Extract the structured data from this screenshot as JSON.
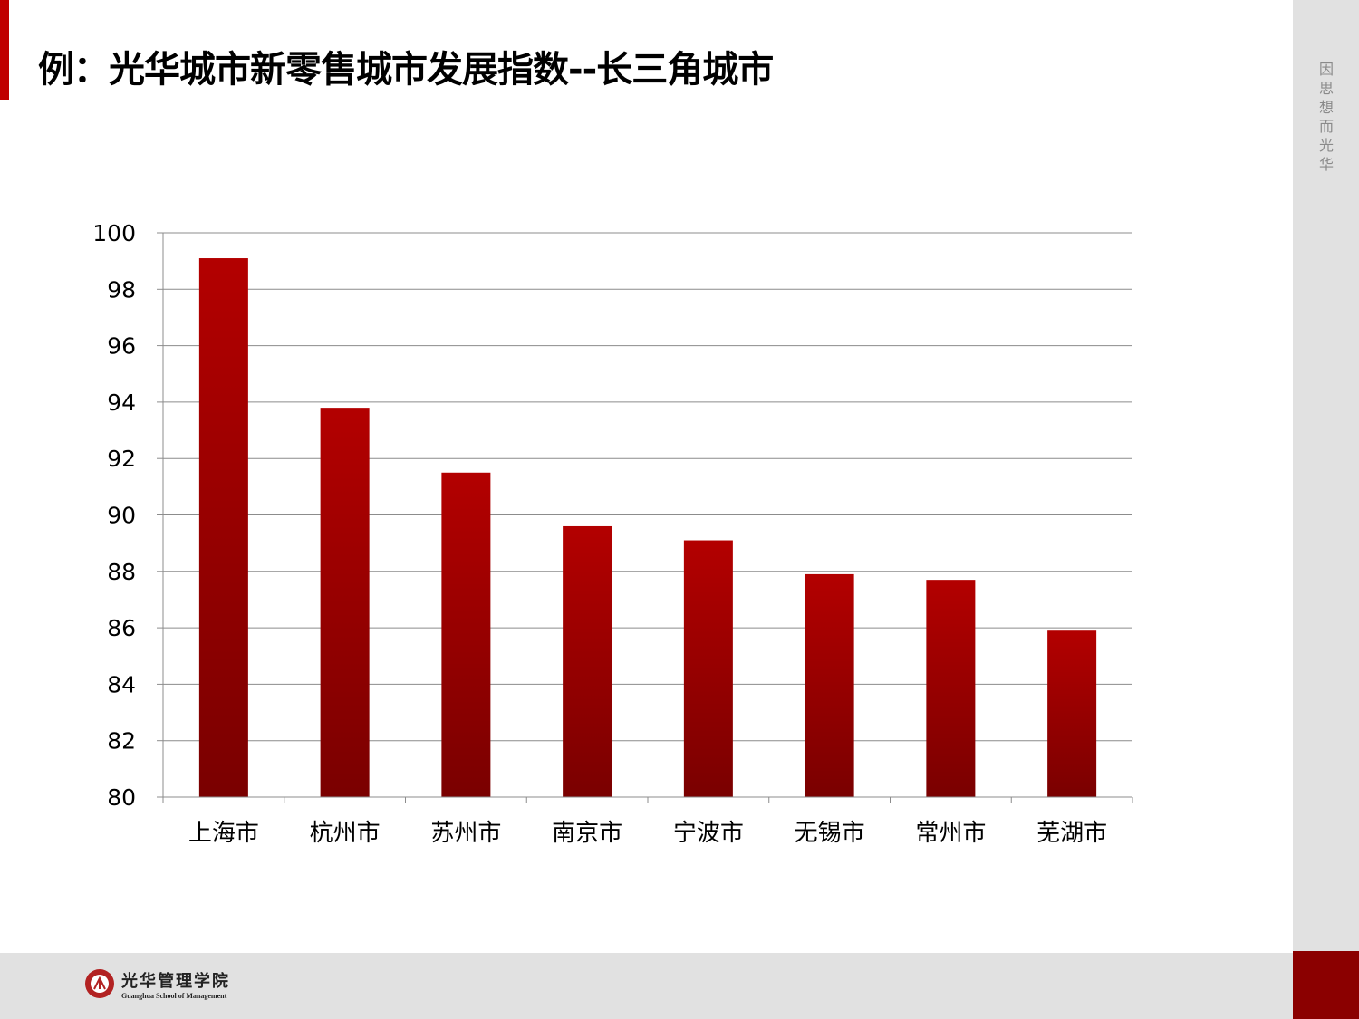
{
  "title": "例：光华城市新零售城市发展指数--长三角城市",
  "slogan": "因思想 而光华",
  "logo": {
    "cn": "光华管理学院",
    "en": "Guanghua School of Management"
  },
  "colors": {
    "bar_top": "#b30000",
    "bar_bottom": "#7a0000",
    "accent": "#c00000"
  },
  "chart_data": {
    "type": "bar",
    "title": "",
    "xlabel": "",
    "ylabel": "",
    "categories": [
      "上海市",
      "杭州市",
      "苏州市",
      "南京市",
      "宁波市",
      "无锡市",
      "常州市",
      "芜湖市"
    ],
    "values": [
      99.1,
      93.8,
      91.5,
      89.6,
      89.1,
      87.9,
      87.7,
      85.9
    ],
    "ylim": [
      80,
      100
    ],
    "yticks": [
      80,
      82,
      84,
      86,
      88,
      90,
      92,
      94,
      96,
      98,
      100
    ],
    "grid": true,
    "legend": "none"
  }
}
